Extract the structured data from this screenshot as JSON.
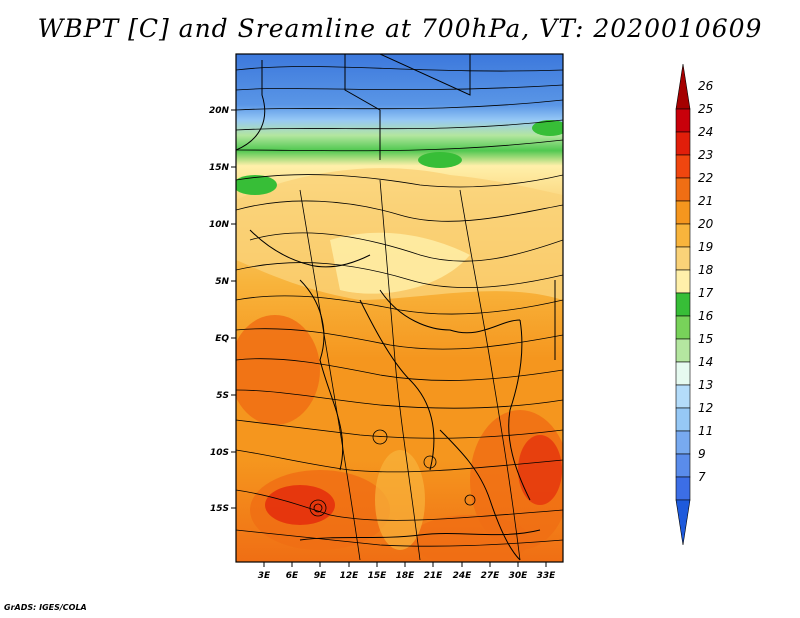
{
  "title": "WBPT [C] and Sreamline at 700hPa, VT: 2020010609",
  "credit": "GrADS: IGES/COLA",
  "map": {
    "variable": "Wet-bulb potential temperature",
    "level": "700hPa",
    "overlay": "Streamlines",
    "lon_labels": [
      "3E",
      "6E",
      "9E",
      "12E",
      "15E",
      "18E",
      "21E",
      "24E",
      "27E",
      "30E",
      "33E"
    ],
    "lat_labels": [
      "20N",
      "15N",
      "10N",
      "5N",
      "EQ",
      "5S",
      "10S",
      "15S"
    ]
  },
  "colorbar": {
    "levels": [
      {
        "label": "26",
        "color": "#a50000"
      },
      {
        "label": "25",
        "color": "#c8000a"
      },
      {
        "label": "24",
        "color": "#e11e0a"
      },
      {
        "label": "23",
        "color": "#f0460f"
      },
      {
        "label": "22",
        "color": "#f06e14"
      },
      {
        "label": "21",
        "color": "#f5961e"
      },
      {
        "label": "20",
        "color": "#f8b43c"
      },
      {
        "label": "19",
        "color": "#fad278"
      },
      {
        "label": "18",
        "color": "#fff0aa"
      },
      {
        "label": "17",
        "color": "#37be37"
      },
      {
        "label": "16",
        "color": "#78d25a"
      },
      {
        "label": "15",
        "color": "#b4e6a0"
      },
      {
        "label": "14",
        "color": "#e6faf0"
      },
      {
        "label": "13",
        "color": "#b4dcfa"
      },
      {
        "label": "12",
        "color": "#96c8f5"
      },
      {
        "label": "11",
        "color": "#78aaf0"
      },
      {
        "label": "9",
        "color": "#5a8ceb"
      },
      {
        "label": "7",
        "color": "#3c6ee6"
      },
      {
        "label": "",
        "color": "#1e5adc"
      }
    ]
  }
}
